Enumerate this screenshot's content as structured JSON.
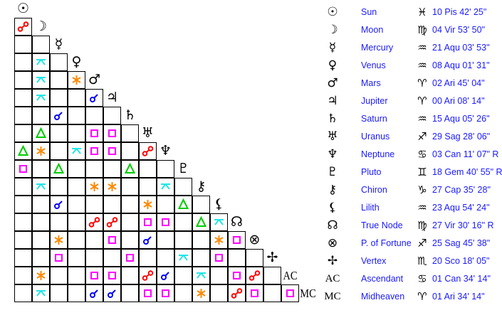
{
  "aspect_colors": {
    "opposition": "#ff0000",
    "conjunction": "#0000ff",
    "trine": "#00cc00",
    "sextile": "#ff8800",
    "square": "#ff00ff",
    "quincunx": "#22e6e6"
  },
  "aspect_codes": {
    "o": "opposition",
    "c": "conjunction",
    "t": "trine",
    "s": "sextile",
    "q": "square",
    "x": "quincunx"
  },
  "planets": [
    {
      "name": "Sun",
      "icon": "sun-icon",
      "glyph": "☉",
      "sign_icon": "pisces-icon",
      "sign_glyph": "♓",
      "position": "10 Pis 42' 25\""
    },
    {
      "name": "Moon",
      "icon": "moon-icon",
      "glyph": "☽",
      "sign_icon": "virgo-icon",
      "sign_glyph": "♍",
      "position": "04 Vir 53' 50\""
    },
    {
      "name": "Mercury",
      "icon": "mercury-icon",
      "glyph": "☿",
      "sign_icon": "aquarius-icon",
      "sign_glyph": "♒",
      "position": "21 Aqu 03' 53\""
    },
    {
      "name": "Venus",
      "icon": "venus-icon",
      "glyph": "♀",
      "sign_icon": "aquarius-icon",
      "sign_glyph": "♒",
      "position": "08 Aqu 01' 31\""
    },
    {
      "name": "Mars",
      "icon": "mars-icon",
      "glyph": "♂",
      "sign_icon": "aries-icon",
      "sign_glyph": "♈",
      "position": "02 Ari 45' 04\""
    },
    {
      "name": "Jupiter",
      "icon": "jupiter-icon",
      "glyph": "♃",
      "sign_icon": "aries-icon",
      "sign_glyph": "♈",
      "position": "00 Ari 08' 14\""
    },
    {
      "name": "Saturn",
      "icon": "saturn-icon",
      "glyph": "♄",
      "sign_icon": "aquarius-icon",
      "sign_glyph": "♒",
      "position": "15 Aqu 05' 26\""
    },
    {
      "name": "Uranus",
      "icon": "uranus-icon",
      "glyph": "♅",
      "sign_icon": "sagittarius-icon",
      "sign_glyph": "♐",
      "position": "29 Sag 28' 06\""
    },
    {
      "name": "Neptune",
      "icon": "neptune-icon",
      "glyph": "♆",
      "sign_icon": "cancer-icon",
      "sign_glyph": "♋",
      "position": "03 Can 11' 07\" R"
    },
    {
      "name": "Pluto",
      "icon": "pluto-icon",
      "glyph": "♇",
      "sign_icon": "gemini-icon",
      "sign_glyph": "♊",
      "position": "18 Gem 40' 55\" R"
    },
    {
      "name": "Chiron",
      "icon": "chiron-icon",
      "glyph": "⚷",
      "sign_icon": "capricorn-icon",
      "sign_glyph": "♑",
      "position": "27 Cap 35' 28\""
    },
    {
      "name": "Lilith",
      "icon": "lilith-icon",
      "glyph": "⚸",
      "sign_icon": "aquarius-icon",
      "sign_glyph": "♒",
      "position": "23 Aqu 54' 24\""
    },
    {
      "name": "True Node",
      "icon": "true-node-icon",
      "glyph": "☊",
      "sign_icon": "virgo-icon",
      "sign_glyph": "♍",
      "position": "27 Vir 30' 16\" R"
    },
    {
      "name": "P. of Fortune",
      "icon": "part-of-fortune-icon",
      "glyph": "⊗",
      "sign_icon": "sagittarius-icon",
      "sign_glyph": "♐",
      "position": "25 Sag 45' 38\""
    },
    {
      "name": "Vertex",
      "icon": "vertex-icon",
      "glyph": "✢",
      "sign_icon": "scorpio-icon",
      "sign_glyph": "♏",
      "position": "20 Sco 18' 05\""
    },
    {
      "name": "Ascendant",
      "icon": "ascendant-label",
      "glyph": "AC",
      "text_glyph": true,
      "sign_icon": "cancer-icon",
      "sign_glyph": "♋",
      "position": "01 Can 34' 14\""
    },
    {
      "name": "Midheaven",
      "icon": "midheaven-label",
      "glyph": "MC",
      "text_glyph": true,
      "sign_icon": "aries-icon",
      "sign_glyph": "♈",
      "position": "01 Ari 34' 14\""
    }
  ],
  "aspect_grid": [
    [
      "o"
    ],
    [
      "",
      ""
    ],
    [
      "",
      "x",
      ""
    ],
    [
      "",
      "x",
      "",
      "s"
    ],
    [
      "",
      "x",
      "",
      "",
      "c"
    ],
    [
      "",
      "",
      "c",
      "",
      "",
      ""
    ],
    [
      "",
      "t",
      "",
      "",
      "q",
      "q",
      ""
    ],
    [
      "t",
      "s",
      "",
      "x",
      "q",
      "q",
      "",
      "o"
    ],
    [
      "q",
      "",
      "t",
      "",
      "",
      "",
      "t",
      "",
      ""
    ],
    [
      "",
      "x",
      "",
      "",
      "s",
      "s",
      "",
      "",
      "x",
      ""
    ],
    [
      "",
      "",
      "c",
      "",
      "",
      "",
      "",
      "s",
      "",
      "t",
      ""
    ],
    [
      "",
      "",
      "",
      "",
      "o",
      "o",
      "",
      "q",
      "q",
      "",
      "t",
      "x"
    ],
    [
      "",
      "",
      "s",
      "",
      "",
      "q",
      "",
      "c",
      "",
      "",
      "",
      "s",
      "q"
    ],
    [
      "",
      "",
      "q",
      "",
      "",
      "",
      "q",
      "",
      "",
      "x",
      "",
      "q",
      "",
      ""
    ],
    [
      "",
      "s",
      "",
      "",
      "q",
      "q",
      "",
      "o",
      "c",
      "",
      "x",
      "",
      "q",
      "o",
      ""
    ],
    [
      "",
      "x",
      "",
      "",
      "c",
      "c",
      "",
      "q",
      "q",
      "",
      "s",
      "",
      "o",
      "q",
      "",
      "q"
    ]
  ]
}
